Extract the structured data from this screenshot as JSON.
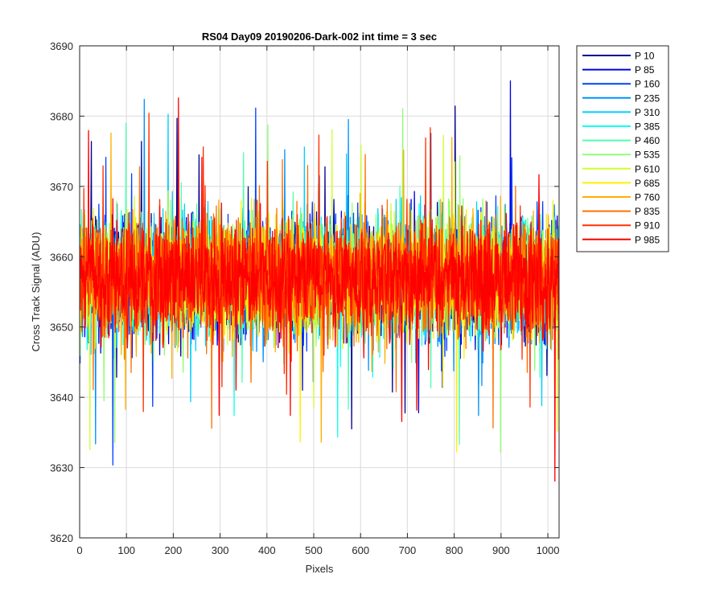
{
  "chart_data": {
    "type": "line",
    "title": "RS04 Day09 20190206-Dark-002 int time = 3 sec",
    "xlabel": "Pixels",
    "ylabel": "Cross Track Signal (ADU)",
    "xlim": [
      0,
      1024
    ],
    "ylim": [
      3620,
      3690
    ],
    "xticks": [
      0,
      100,
      200,
      300,
      400,
      500,
      600,
      700,
      800,
      900,
      1000
    ],
    "yticks": [
      3620,
      3630,
      3640,
      3650,
      3660,
      3670,
      3680,
      3690
    ],
    "grid": true,
    "legend_position": "outside-top-right",
    "x_count": 1024,
    "series": [
      {
        "name": "P 10",
        "color": "#00008F",
        "mean": 3657,
        "spread": 7.5
      },
      {
        "name": "P 85",
        "color": "#0000E0",
        "mean": 3657,
        "spread": 7.5
      },
      {
        "name": "P 160",
        "color": "#0040FF",
        "mean": 3657,
        "spread": 7.5
      },
      {
        "name": "P 235",
        "color": "#0090FF",
        "mean": 3657,
        "spread": 7.5
      },
      {
        "name": "P 310",
        "color": "#00CFFF",
        "mean": 3657,
        "spread": 7.5
      },
      {
        "name": "P 385",
        "color": "#10FFEF",
        "mean": 3657,
        "spread": 7.5
      },
      {
        "name": "P 460",
        "color": "#50FFAF",
        "mean": 3657,
        "spread": 7.5
      },
      {
        "name": "P 535",
        "color": "#8FFF70",
        "mean": 3657,
        "spread": 7.5
      },
      {
        "name": "P 610",
        "color": "#CFFF30",
        "mean": 3657,
        "spread": 7.5
      },
      {
        "name": "P 685",
        "color": "#FFEF00",
        "mean": 3657,
        "spread": 7.5
      },
      {
        "name": "P 760",
        "color": "#FFAF00",
        "mean": 3657,
        "spread": 7.5
      },
      {
        "name": "P 835",
        "color": "#FF7000",
        "mean": 3657,
        "spread": 7.5
      },
      {
        "name": "P 910",
        "color": "#FF3000",
        "mean": 3657,
        "spread": 7.5
      },
      {
        "name": "P 985",
        "color": "#FF0000",
        "mean": 3657,
        "spread": 7.5
      }
    ]
  }
}
